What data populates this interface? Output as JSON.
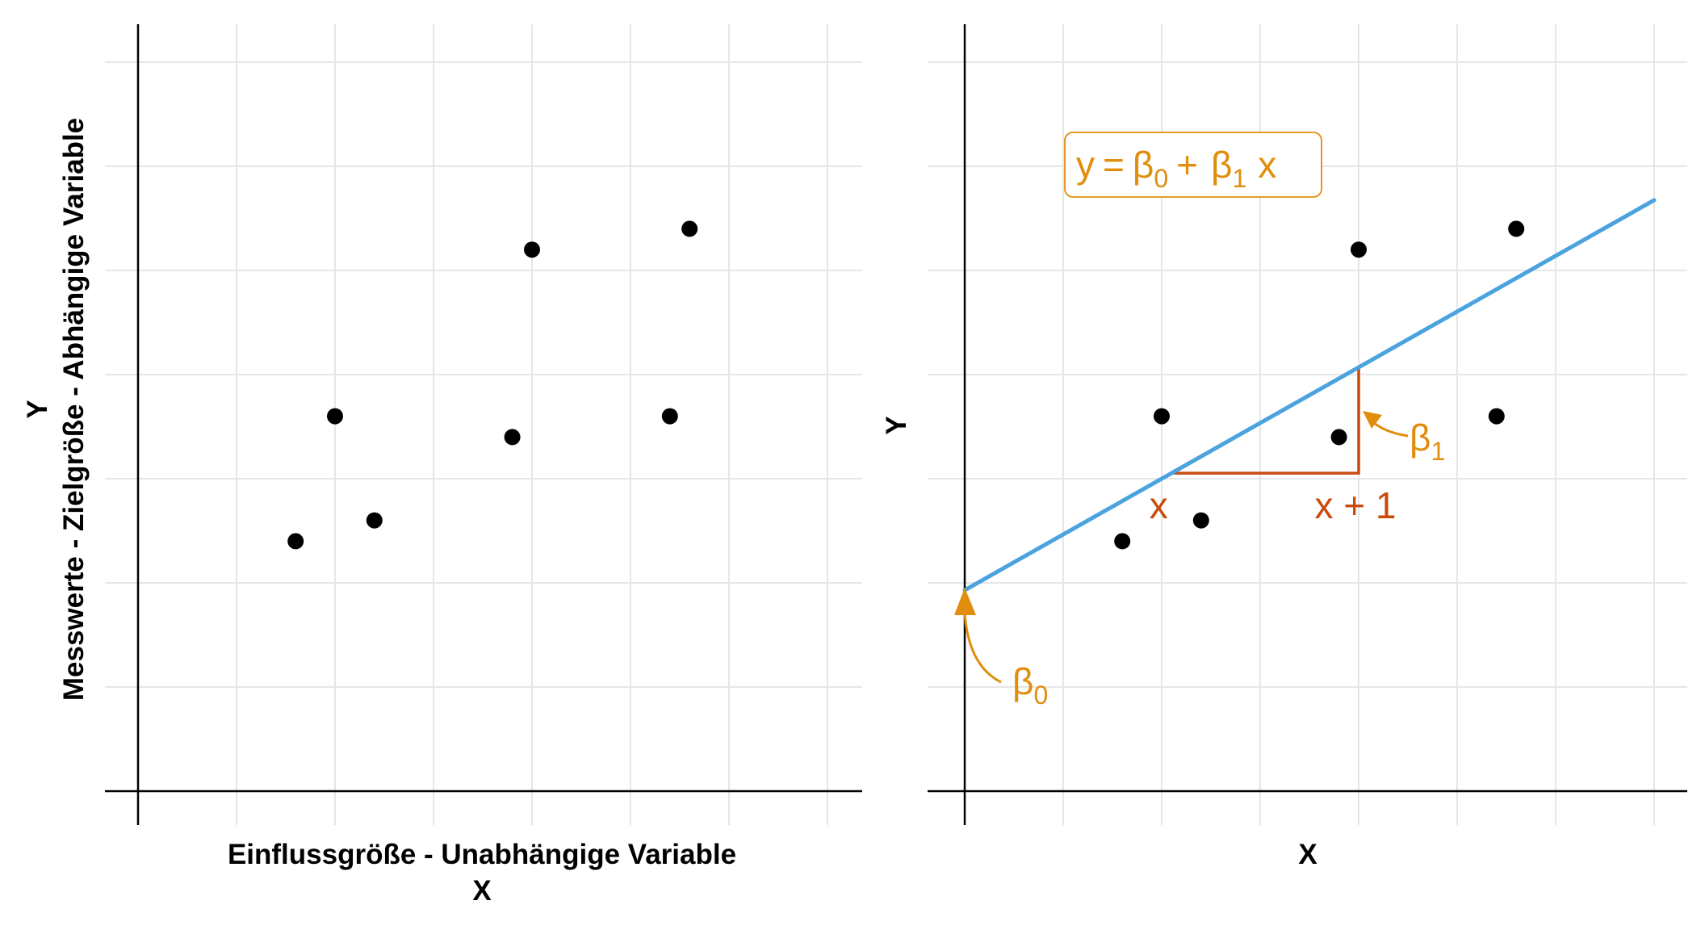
{
  "colors": {
    "points": "#000000",
    "regression_line": "#4aa3df",
    "annotation": "#e08e0b",
    "slope_triangle": "#c84b0c",
    "grid": "#e6e6e6",
    "axis": "#000000"
  },
  "chart_data": [
    {
      "type": "scatter",
      "xlabel_lines": [
        "Einflussgröße - Unabhängige Variable",
        "X"
      ],
      "ylabel_lines": [
        "Y",
        "Messwerte - Zielgröße - Abhängige Variable"
      ],
      "xlim": [
        0,
        7
      ],
      "ylim": [
        0,
        7
      ],
      "grid": true,
      "points": [
        {
          "x": 1.6,
          "y": 2.4
        },
        {
          "x": 2.0,
          "y": 3.6
        },
        {
          "x": 2.4,
          "y": 2.6
        },
        {
          "x": 3.8,
          "y": 3.4
        },
        {
          "x": 4.0,
          "y": 5.2
        },
        {
          "x": 5.4,
          "y": 3.6
        },
        {
          "x": 5.6,
          "y": 5.4
        }
      ]
    },
    {
      "type": "scatter",
      "xlabel_lines": [
        "X"
      ],
      "ylabel_lines": [
        "Y"
      ],
      "xlim": [
        0,
        7
      ],
      "ylim": [
        0,
        7
      ],
      "grid": true,
      "points": [
        {
          "x": 1.6,
          "y": 2.4
        },
        {
          "x": 2.0,
          "y": 3.6
        },
        {
          "x": 2.4,
          "y": 2.6
        },
        {
          "x": 3.8,
          "y": 3.4
        },
        {
          "x": 4.0,
          "y": 5.2
        },
        {
          "x": 5.4,
          "y": 3.6
        },
        {
          "x": 5.6,
          "y": 5.4
        }
      ],
      "regression_line": {
        "intercept": 1.93,
        "slope": 0.535,
        "x_range": [
          0,
          7
        ]
      },
      "equation": {
        "y": "y",
        "eq": "=",
        "b0": "β",
        "b0_sub": "0",
        "plus": "+",
        "b1": "β",
        "b1_sub": "1",
        "x": "x"
      },
      "slope_triangle": {
        "x_start": 2.1,
        "x_end": 4.0,
        "x_label": "x",
        "x1_label": "x + 1"
      },
      "labels": {
        "beta0": {
          "symbol": "β",
          "sub": "0"
        },
        "beta1": {
          "symbol": "β",
          "sub": "1"
        }
      }
    }
  ]
}
